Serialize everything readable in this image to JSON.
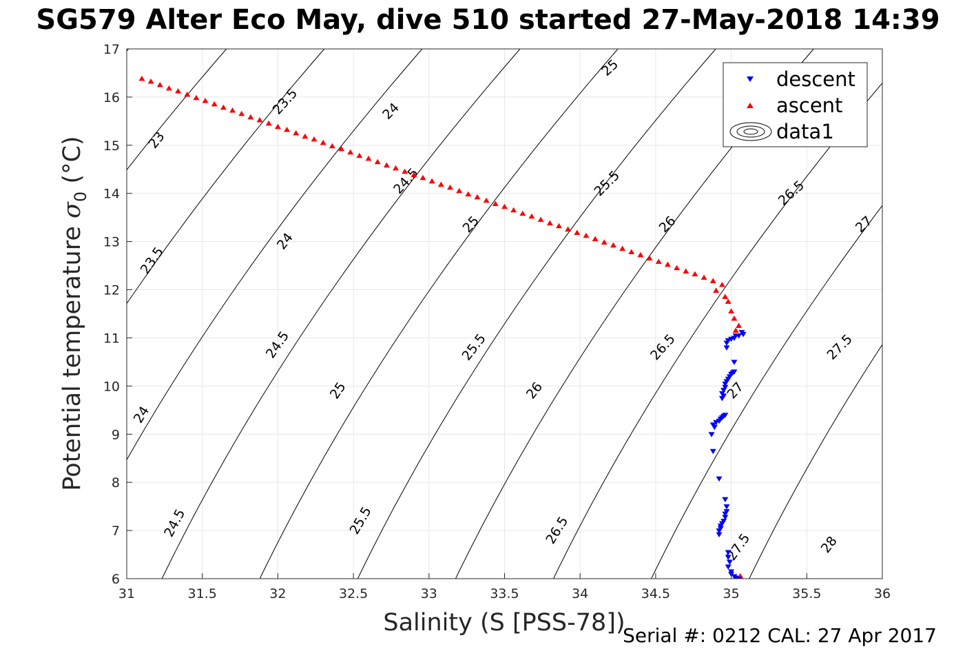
{
  "title": "SG579 Alter Eco May, dive 510 started 27-May-2018 14:39",
  "footer": "Serial #: 0212  CAL: 27 Apr 2017",
  "chart_data": {
    "type": "scatter",
    "xlabel": "Salinity (S [PSS-78])",
    "ylabel_main": "Potential temperature ",
    "ylabel_symbol": "σ",
    "ylabel_sub": "0",
    "ylabel_unit": " (°C)",
    "xlim": [
      31,
      36
    ],
    "ylim": [
      6,
      17
    ],
    "xticks": [
      31,
      31.5,
      32,
      32.5,
      33,
      33.5,
      34,
      34.5,
      35,
      35.5,
      36
    ],
    "xtick_labels": [
      "31",
      "31.5",
      "32",
      "32.5",
      "33",
      "33.5",
      "34",
      "34.5",
      "35",
      "35.5",
      "36"
    ],
    "yticks": [
      6,
      7,
      8,
      9,
      10,
      11,
      12,
      13,
      14,
      15,
      16,
      17
    ],
    "ytick_labels": [
      "6",
      "7",
      "8",
      "9",
      "10",
      "11",
      "12",
      "13",
      "14",
      "15",
      "16",
      "17"
    ],
    "grid": true,
    "legend_position": "top-right",
    "legend": [
      "descent",
      "ascent",
      "data1"
    ],
    "colors": {
      "descent": "#0000ff",
      "ascent": "#ff0000",
      "contour": "#000000",
      "grid": "#e6e6e6"
    },
    "contour_levels": [
      23,
      23.5,
      24,
      24.5,
      25,
      25.5,
      26,
      26.5,
      27,
      27.5,
      28
    ],
    "contour_labels": [
      {
        "text": "23",
        "x": 31.2,
        "y": 15.1,
        "angle": -52
      },
      {
        "text": "23.5",
        "x": 32.05,
        "y": 15.9,
        "angle": -48
      },
      {
        "text": "24",
        "x": 32.75,
        "y": 15.7,
        "angle": -45
      },
      {
        "text": "25",
        "x": 34.2,
        "y": 16.6,
        "angle": -42
      },
      {
        "text": "23.5",
        "x": 31.17,
        "y": 12.6,
        "angle": -55
      },
      {
        "text": "24",
        "x": 32.05,
        "y": 13.0,
        "angle": -52
      },
      {
        "text": "24.5",
        "x": 32.85,
        "y": 14.25,
        "angle": -48
      },
      {
        "text": "25",
        "x": 33.28,
        "y": 13.35,
        "angle": -48
      },
      {
        "text": "25.5",
        "x": 34.18,
        "y": 14.2,
        "angle": -45
      },
      {
        "text": "26",
        "x": 34.58,
        "y": 13.35,
        "angle": -45
      },
      {
        "text": "26.5",
        "x": 35.4,
        "y": 14.0,
        "angle": -42
      },
      {
        "text": "27",
        "x": 35.88,
        "y": 13.35,
        "angle": -42
      },
      {
        "text": "24",
        "x": 31.1,
        "y": 9.4,
        "angle": -58
      },
      {
        "text": "24.5",
        "x": 32.0,
        "y": 10.85,
        "angle": -55
      },
      {
        "text": "25",
        "x": 32.4,
        "y": 9.9,
        "angle": -55
      },
      {
        "text": "25.5",
        "x": 33.3,
        "y": 10.8,
        "angle": -52
      },
      {
        "text": "26",
        "x": 33.7,
        "y": 9.9,
        "angle": -52
      },
      {
        "text": "26.5",
        "x": 34.55,
        "y": 10.8,
        "angle": -48
      },
      {
        "text": "27",
        "x": 35.03,
        "y": 9.9,
        "angle": -48
      },
      {
        "text": "27.5",
        "x": 35.72,
        "y": 10.8,
        "angle": -45
      },
      {
        "text": "24.5",
        "x": 31.32,
        "y": 7.15,
        "angle": -62
      },
      {
        "text": "25.5",
        "x": 32.55,
        "y": 7.2,
        "angle": -60
      },
      {
        "text": "26.5",
        "x": 33.85,
        "y": 7.0,
        "angle": -58
      },
      {
        "text": "27.5",
        "x": 35.05,
        "y": 6.65,
        "angle": -55
      },
      {
        "text": "28",
        "x": 35.65,
        "y": 6.7,
        "angle": -52
      }
    ],
    "series": [
      {
        "name": "ascent",
        "marker": "triangle-up",
        "points": [
          [
            31.1,
            16.38
          ],
          [
            31.16,
            16.32
          ],
          [
            31.22,
            16.25
          ],
          [
            31.28,
            16.18
          ],
          [
            31.34,
            16.12
          ],
          [
            31.4,
            16.05
          ],
          [
            31.46,
            15.98
          ],
          [
            31.52,
            15.92
          ],
          [
            31.58,
            15.85
          ],
          [
            31.64,
            15.78
          ],
          [
            31.7,
            15.72
          ],
          [
            31.76,
            15.65
          ],
          [
            31.82,
            15.58
          ],
          [
            31.88,
            15.52
          ],
          [
            31.94,
            15.45
          ],
          [
            32.0,
            15.38
          ],
          [
            32.06,
            15.32
          ],
          [
            32.12,
            15.25
          ],
          [
            32.18,
            15.18
          ],
          [
            32.24,
            15.12
          ],
          [
            32.3,
            15.05
          ],
          [
            32.36,
            14.98
          ],
          [
            32.42,
            14.92
          ],
          [
            32.48,
            14.85
          ],
          [
            32.54,
            14.78
          ],
          [
            32.6,
            14.72
          ],
          [
            32.66,
            14.65
          ],
          [
            32.72,
            14.58
          ],
          [
            32.78,
            14.52
          ],
          [
            32.84,
            14.45
          ],
          [
            32.9,
            14.38
          ],
          [
            32.96,
            14.32
          ],
          [
            33.02,
            14.25
          ],
          [
            33.08,
            14.18
          ],
          [
            33.14,
            14.12
          ],
          [
            33.2,
            14.05
          ],
          [
            33.26,
            13.98
          ],
          [
            33.32,
            13.92
          ],
          [
            33.38,
            13.85
          ],
          [
            33.44,
            13.78
          ],
          [
            33.5,
            13.72
          ],
          [
            33.56,
            13.65
          ],
          [
            33.62,
            13.58
          ],
          [
            33.68,
            13.52
          ],
          [
            33.74,
            13.45
          ],
          [
            33.8,
            13.38
          ],
          [
            33.86,
            13.32
          ],
          [
            33.92,
            13.25
          ],
          [
            33.98,
            13.18
          ],
          [
            34.04,
            13.12
          ],
          [
            34.1,
            13.05
          ],
          [
            34.16,
            12.98
          ],
          [
            34.22,
            12.92
          ],
          [
            34.28,
            12.85
          ],
          [
            34.34,
            12.78
          ],
          [
            34.4,
            12.72
          ],
          [
            34.46,
            12.65
          ],
          [
            34.52,
            12.58
          ],
          [
            34.58,
            12.52
          ],
          [
            34.64,
            12.45
          ],
          [
            34.7,
            12.38
          ],
          [
            34.76,
            12.32
          ],
          [
            34.82,
            12.25
          ],
          [
            34.88,
            12.18
          ],
          [
            34.94,
            12.1
          ],
          [
            34.9,
            11.98
          ],
          [
            34.96,
            11.85
          ],
          [
            34.98,
            11.75
          ],
          [
            35.0,
            11.55
          ],
          [
            35.02,
            11.4
          ],
          [
            35.05,
            11.25
          ],
          [
            35.03,
            11.15
          ],
          [
            35.06,
            6.05
          ],
          [
            35.03,
            6.0
          ]
        ]
      },
      {
        "name": "descent",
        "marker": "triangle-down",
        "points": [
          [
            35.07,
            11.12
          ],
          [
            35.08,
            11.08
          ],
          [
            35.05,
            11.05
          ],
          [
            35.03,
            11.05
          ],
          [
            35.02,
            11.0
          ],
          [
            35.0,
            10.98
          ],
          [
            34.98,
            10.95
          ],
          [
            34.97,
            10.9
          ],
          [
            34.97,
            10.8
          ],
          [
            35.02,
            10.5
          ],
          [
            35.02,
            10.3
          ],
          [
            35.01,
            10.28
          ],
          [
            35.0,
            10.25
          ],
          [
            34.99,
            10.2
          ],
          [
            34.98,
            10.15
          ],
          [
            34.97,
            10.1
          ],
          [
            34.96,
            10.05
          ],
          [
            34.96,
            9.98
          ],
          [
            34.95,
            9.92
          ],
          [
            34.94,
            9.85
          ],
          [
            34.95,
            9.8
          ],
          [
            34.94,
            9.75
          ],
          [
            34.96,
            9.4
          ],
          [
            34.95,
            9.38
          ],
          [
            34.94,
            9.35
          ],
          [
            34.93,
            9.32
          ],
          [
            34.92,
            9.28
          ],
          [
            34.9,
            9.25
          ],
          [
            34.88,
            9.2
          ],
          [
            34.89,
            9.15
          ],
          [
            34.87,
            9.0
          ],
          [
            34.88,
            8.65
          ],
          [
            34.92,
            8.08
          ],
          [
            34.96,
            7.65
          ],
          [
            34.97,
            7.5
          ],
          [
            34.97,
            7.4
          ],
          [
            34.96,
            7.35
          ],
          [
            34.96,
            7.28
          ],
          [
            34.95,
            7.2
          ],
          [
            34.94,
            7.15
          ],
          [
            34.93,
            7.1
          ],
          [
            34.93,
            7.05
          ],
          [
            34.92,
            7.0
          ],
          [
            34.92,
            6.92
          ],
          [
            34.98,
            6.55
          ],
          [
            34.98,
            6.45
          ],
          [
            34.99,
            6.35
          ],
          [
            34.98,
            6.25
          ],
          [
            35.0,
            6.15
          ],
          [
            35.0,
            6.1
          ],
          [
            35.02,
            6.05
          ],
          [
            35.03,
            6.02
          ],
          [
            35.04,
            6.0
          ],
          [
            35.05,
            6.0
          ]
        ]
      }
    ]
  }
}
